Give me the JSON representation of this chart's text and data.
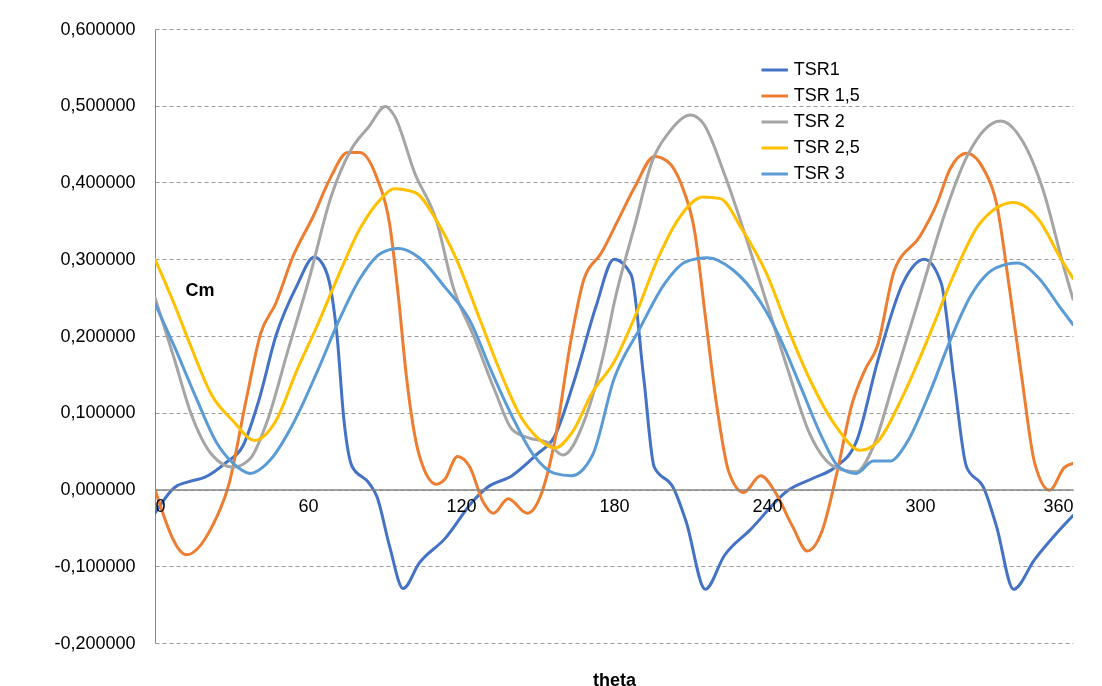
{
  "chart_data": {
    "type": "line",
    "xlabel": "theta",
    "ylabel": "Cm",
    "xlim": [
      0,
      360
    ],
    "xticks": [
      0,
      60,
      120,
      180,
      240,
      300,
      360
    ],
    "ylim": [
      -0.2,
      0.6
    ],
    "yticks": [
      {
        "value": -0.2,
        "label": "-0,200000"
      },
      {
        "value": -0.1,
        "label": "-0,100000"
      },
      {
        "value": 0,
        "label": "0,000000"
      },
      {
        "value": 0.1,
        "label": "0,100000"
      },
      {
        "value": 0.2,
        "label": "0,200000"
      },
      {
        "value": 0.3,
        "label": "0,300000"
      },
      {
        "value": 0.4,
        "label": "0,400000"
      },
      {
        "value": 0.5,
        "label": "0,500000"
      },
      {
        "value": 0.6,
        "label": "0,600000"
      }
    ],
    "grid": "y",
    "legend": "top right",
    "marker": "none",
    "line_style": "solid",
    "series": [
      {
        "name": "TSR1",
        "color": "#4472c4",
        "x": [
          0,
          7.8,
          13,
          19.6,
          27.8,
          34.5,
          40.8,
          47.4,
          55.7,
          62.4,
          65.9,
          69,
          71.4,
          74.1,
          77.3,
          84,
          87,
          92,
          97.3,
          103.6,
          113.7,
          125,
          130,
          140,
          149.8,
          156.5,
          164.7,
          172.9,
          180,
          186.7,
          191.7,
          195.8,
          203.3,
          208.3,
          215.8,
          223.3,
          233.3,
          248.3,
          258.3,
          266.7,
          275,
          283.3,
          293.3,
          301.7,
          308.3,
          313.3,
          318.3,
          325,
          330,
          336.7,
          345,
          353.3,
          360
        ],
        "values": [
          -0.031,
          0.003,
          0.01,
          0.016,
          0.035,
          0.057,
          0.117,
          0.2,
          0.266,
          0.303,
          0.293,
          0.26,
          0.2,
          0.09,
          0.03,
          0.008,
          -0.009,
          -0.074,
          -0.129,
          -0.096,
          -0.064,
          -0.014,
          0.002,
          0.018,
          0.046,
          0.068,
          0.145,
          0.238,
          0.3,
          0.28,
          0.144,
          0.029,
          0.002,
          -0.042,
          -0.13,
          -0.086,
          -0.053,
          -0.001,
          0.015,
          0.029,
          0.062,
          0.166,
          0.269,
          0.3,
          0.269,
          0.144,
          0.029,
          0.002,
          -0.048,
          -0.13,
          -0.091,
          -0.058,
          -0.034
        ]
      },
      {
        "name": "TSR 1,5",
        "color": "#ed7d31",
        "x": [
          0,
          12.4,
          22.4,
          29,
          35.7,
          41.5,
          47.3,
          53.9,
          62.2,
          68.8,
          75.5,
          80.4,
          87,
          92,
          95.4,
          98.7,
          103.6,
          110.3,
          113.6,
          118.6,
          123.5,
          128.5,
          132.7,
          138.5,
          146,
          151.7,
          156.7,
          163.3,
          168.3,
          175,
          181.6,
          188.3,
          195.8,
          200.8,
          206.7,
          211.7,
          215.8,
          220,
          225,
          230.8,
          237.5,
          243.3,
          250,
          255.8,
          261.7,
          267.5,
          273.3,
          278.3,
          283.3,
          290,
          300,
          306.7,
          311.7,
          318.3,
          325,
          330,
          335,
          340,
          345,
          350.8,
          356.7,
          360
        ],
        "values": [
          0,
          -0.085,
          -0.048,
          0.007,
          0.116,
          0.204,
          0.242,
          0.302,
          0.357,
          0.406,
          0.439,
          0.439,
          0.406,
          0.346,
          0.253,
          0.144,
          0.045,
          0.007,
          0.013,
          0.043,
          0.029,
          -0.015,
          -0.031,
          -0.012,
          -0.031,
          -0.004,
          0.062,
          0.198,
          0.275,
          0.308,
          0.351,
          0.395,
          0.434,
          0.428,
          0.395,
          0.335,
          0.226,
          0.116,
          0.023,
          -0.004,
          0.018,
          -0.004,
          -0.048,
          -0.08,
          -0.053,
          0.023,
          0.111,
          0.155,
          0.187,
          0.286,
          0.33,
          0.373,
          0.417,
          0.438,
          0.417,
          0.373,
          0.264,
          0.144,
          0.034,
          -0.001,
          0.029,
          0.034
        ]
      },
      {
        "name": "TSR 2",
        "color": "#a5a5a5",
        "x": [
          0,
          7.5,
          14,
          22.4,
          30.7,
          37.3,
          44,
          52.2,
          60.5,
          68.8,
          77.1,
          83.7,
          90.4,
          93.7,
          102,
          110.3,
          116.9,
          125.2,
          133.5,
          140.1,
          146.8,
          153.4,
          160,
          168.3,
          176.6,
          180,
          188.3,
          195,
          201.7,
          210,
          215,
          223.3,
          231.7,
          240,
          248.3,
          256.7,
          266.7,
          275,
          281.7,
          290,
          300,
          310,
          318.3,
          331.7,
          340,
          348.3,
          356.7,
          360
        ],
        "values": [
          0.25,
          0.171,
          0.1,
          0.045,
          0.029,
          0.04,
          0.089,
          0.182,
          0.275,
          0.379,
          0.444,
          0.472,
          0.499,
          0.488,
          0.411,
          0.351,
          0.264,
          0.198,
          0.127,
          0.078,
          0.067,
          0.062,
          0.045,
          0.089,
          0.187,
          0.242,
          0.346,
          0.428,
          0.466,
          0.488,
          0.477,
          0.411,
          0.329,
          0.242,
          0.155,
          0.073,
          0.029,
          0.023,
          0.056,
          0.144,
          0.253,
          0.362,
          0.433,
          0.48,
          0.455,
          0.39,
          0.286,
          0.248
        ]
      },
      {
        "name": "TSR 2,5",
        "color": "#ffc000",
        "x": [
          0,
          7.5,
          14,
          22.4,
          30.7,
          39,
          47.3,
          55.6,
          63.8,
          72.1,
          80.4,
          88.7,
          93.7,
          102,
          110.3,
          118.6,
          126.9,
          135.2,
          143.4,
          150.1,
          156.7,
          163.3,
          171.6,
          180,
          188.3,
          196.7,
          205,
          215,
          221.7,
          230,
          240,
          248.3,
          256.7,
          266.7,
          276.7,
          283.3,
          293.3,
          303.3,
          313.3,
          323.3,
          336.7,
          346.7,
          355,
          360
        ],
        "values": [
          0.3,
          0.242,
          0.187,
          0.122,
          0.089,
          0.064,
          0.089,
          0.155,
          0.215,
          0.28,
          0.34,
          0.379,
          0.392,
          0.387,
          0.351,
          0.297,
          0.226,
          0.155,
          0.095,
          0.067,
          0.054,
          0.073,
          0.127,
          0.166,
          0.226,
          0.297,
          0.351,
          0.381,
          0.379,
          0.34,
          0.28,
          0.209,
          0.144,
          0.084,
          0.051,
          0.062,
          0.122,
          0.198,
          0.28,
          0.346,
          0.374,
          0.351,
          0.302,
          0.275
        ]
      },
      {
        "name": "TSR 3",
        "color": "#5b9bd5",
        "x": [
          0,
          7.5,
          15.8,
          24,
          30.7,
          37.3,
          45.6,
          53.9,
          63.8,
          72.1,
          80.4,
          88.7,
          95.4,
          103.6,
          113.6,
          123.5,
          131.8,
          140.1,
          148.4,
          156.7,
          163.3,
          171.6,
          180,
          190,
          200,
          208.3,
          216.7,
          226.7,
          236.7,
          245,
          253.3,
          261.7,
          268.3,
          275,
          281.7,
          288.3,
          295,
          303.3,
          311.7,
          320,
          330,
          338.3,
          346.7,
          355,
          360
        ],
        "values": [
          0.242,
          0.187,
          0.122,
          0.062,
          0.034,
          0.021,
          0.04,
          0.084,
          0.155,
          0.22,
          0.275,
          0.308,
          0.314,
          0.302,
          0.264,
          0.22,
          0.155,
          0.095,
          0.045,
          0.021,
          0.018,
          0.045,
          0.144,
          0.209,
          0.269,
          0.297,
          0.302,
          0.286,
          0.248,
          0.198,
          0.133,
          0.067,
          0.029,
          0.021,
          0.037,
          0.037,
          0.062,
          0.122,
          0.193,
          0.253,
          0.289,
          0.295,
          0.275,
          0.237,
          0.215
        ]
      }
    ]
  }
}
